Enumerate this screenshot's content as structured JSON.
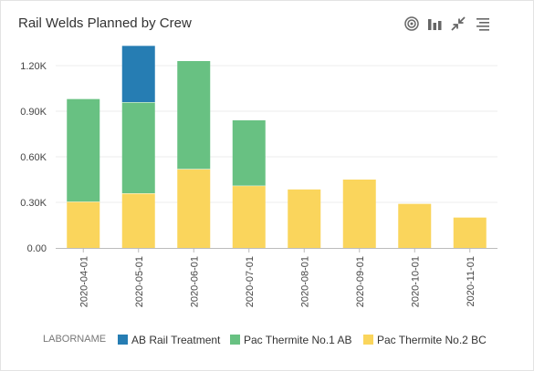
{
  "card": {
    "title": "Rail Welds Planned by Crew"
  },
  "toolbar": {
    "icons": [
      "target-icon",
      "bar-chart-icon",
      "collapse-icon",
      "list-icon"
    ]
  },
  "legend": {
    "title": "LABORNAME"
  },
  "colors": {
    "axis": "#bbbbbb",
    "grid": "#ededed",
    "text": "#444444"
  },
  "chart_data": {
    "type": "bar",
    "stacked": true,
    "categories": [
      "2020-04-01",
      "2020-05-01",
      "2020-06-01",
      "2020-07-01",
      "2020-08-01",
      "2020-09-01",
      "2020-10-01",
      "2020-11-01"
    ],
    "series": [
      {
        "name": "Pac Thermite No.2 BC",
        "color": "#fad55c",
        "values": [
          305,
          360,
          520,
          410,
          385,
          450,
          290,
          200
        ]
      },
      {
        "name": "Pac Thermite No.1 AB",
        "color": "#68c182",
        "values": [
          675,
          600,
          710,
          430,
          0,
          0,
          0,
          0
        ]
      },
      {
        "name": "AB Rail Treatment",
        "color": "#267db3",
        "values": [
          0,
          370,
          0,
          0,
          0,
          0,
          0,
          0
        ]
      }
    ],
    "legend_order": [
      "AB Rail Treatment",
      "Pac Thermite No.1 AB",
      "Pac Thermite No.2 BC"
    ],
    "yticks": [
      "0.00",
      "0.30K",
      "0.60K",
      "0.90K",
      "1.20K"
    ],
    "ytick_values": [
      0,
      300,
      600,
      900,
      1200
    ],
    "ylim": [
      0,
      1350
    ],
    "grid": true,
    "legend_position": "bottom"
  }
}
